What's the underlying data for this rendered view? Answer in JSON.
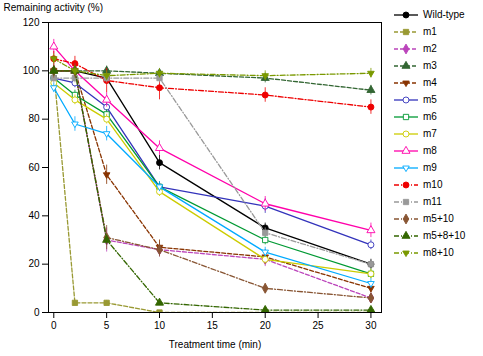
{
  "chart_data": {
    "type": "line",
    "xlabel": "Treatment time (min)",
    "ylabel": "Remaining activity (%)",
    "x": [
      0,
      2,
      5,
      10,
      20,
      30
    ],
    "series": [
      {
        "name": "Wild-type",
        "color": "#000000",
        "values": [
          100,
          100,
          97,
          62,
          35,
          20
        ],
        "yerr": [
          2,
          2,
          2,
          3,
          2,
          2
        ],
        "marker": "circle",
        "line_style": "solid"
      },
      {
        "name": "m1",
        "color": "#999933",
        "values": [
          100,
          4,
          4,
          0,
          0,
          0
        ],
        "yerr": [
          2,
          1,
          1,
          0,
          0,
          0
        ],
        "marker": "square",
        "line_style": "dashed"
      },
      {
        "name": "m2",
        "color": "#bb44bb",
        "values": [
          100,
          100,
          30,
          26,
          22,
          6
        ],
        "yerr": [
          2,
          3,
          5,
          3,
          3,
          2
        ],
        "marker": "diamond",
        "line_style": "dashed"
      },
      {
        "name": "m3",
        "color": "#336633",
        "values": [
          100,
          100,
          100,
          99,
          97,
          92
        ],
        "yerr": [
          2,
          2,
          2,
          1,
          2,
          2
        ],
        "marker": "triangle-up",
        "line_style": "dashed"
      },
      {
        "name": "m4",
        "color": "#883300",
        "values": [
          100,
          100,
          57,
          27,
          23,
          10
        ],
        "yerr": [
          2,
          3,
          4,
          3,
          3,
          2
        ],
        "marker": "triangle-down",
        "line_style": "dashed"
      },
      {
        "name": "m5",
        "color": "#3333bb",
        "values": [
          97,
          95,
          85,
          52,
          44,
          28
        ],
        "yerr": [
          2,
          2,
          3,
          2,
          3,
          2
        ],
        "marker": "open-circle",
        "line_style": "solid"
      },
      {
        "name": "m6",
        "color": "#009933",
        "values": [
          97,
          90,
          82,
          52,
          30,
          16
        ],
        "yerr": [
          2,
          2,
          2,
          2,
          2,
          2
        ],
        "marker": "open-square",
        "line_style": "solid"
      },
      {
        "name": "m7",
        "color": "#cccc00",
        "values": [
          95,
          88,
          80,
          50,
          22,
          16
        ],
        "yerr": [
          2,
          2,
          2,
          2,
          2,
          2
        ],
        "marker": "open-circle",
        "line_style": "solid"
      },
      {
        "name": "m8",
        "color": "#ff00aa",
        "values": [
          110,
          100,
          88,
          68,
          45,
          34
        ],
        "yerr": [
          3,
          3,
          3,
          3,
          3,
          3
        ],
        "marker": "open-triangle-up",
        "line_style": "solid"
      },
      {
        "name": "m9",
        "color": "#00aaff",
        "values": [
          93,
          78,
          74,
          52,
          25,
          12
        ],
        "yerr": [
          2,
          3,
          3,
          2,
          2,
          2
        ],
        "marker": "open-triangle-down",
        "line_style": "solid"
      },
      {
        "name": "m10",
        "color": "#ee0000",
        "values": [
          105,
          103,
          96,
          93,
          90,
          85
        ],
        "yerr": [
          3,
          3,
          5,
          5,
          3,
          3
        ],
        "marker": "circle",
        "line_style": "dashdot"
      },
      {
        "name": "m11",
        "color": "#999999",
        "values": [
          97,
          97,
          97,
          97,
          33,
          20
        ],
        "yerr": [
          2,
          2,
          2,
          2,
          2,
          2
        ],
        "marker": "square",
        "line_style": "dashdot"
      },
      {
        "name": "m5+10",
        "color": "#885533",
        "values": [
          100,
          100,
          31,
          26,
          10,
          6
        ],
        "yerr": [
          3,
          3,
          5,
          3,
          2,
          2
        ],
        "marker": "diamond",
        "line_style": "dashdot"
      },
      {
        "name": "m5+8+10",
        "color": "#336600",
        "values": [
          100,
          100,
          30,
          4,
          1,
          1
        ],
        "yerr": [
          2,
          2,
          2,
          1,
          1,
          1
        ],
        "marker": "triangle-up",
        "line_style": "dashdot"
      },
      {
        "name": "m8+10",
        "color": "#7a9900",
        "values": [
          105,
          100,
          98,
          99,
          98,
          99
        ],
        "yerr": [
          2,
          2,
          2,
          2,
          2,
          2
        ],
        "marker": "triangle-down",
        "line_style": "dashdot"
      }
    ],
    "xlim": [
      -0.5,
      31
    ],
    "ylim": [
      0,
      120
    ],
    "xticks": [
      0,
      5,
      10,
      15,
      20,
      25,
      30
    ],
    "yticks": [
      0,
      20,
      40,
      60,
      80,
      100,
      120
    ],
    "grid": false,
    "legend": "right"
  }
}
